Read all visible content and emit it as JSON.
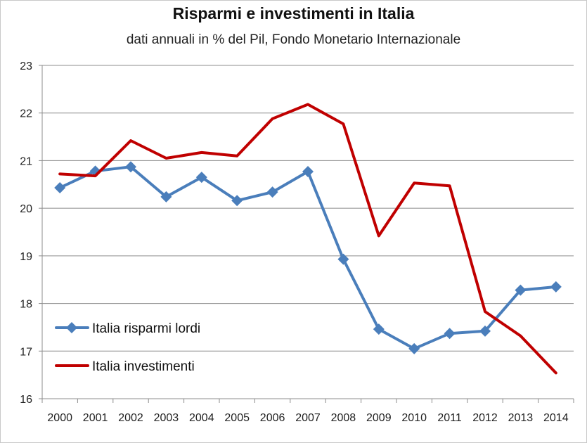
{
  "chart_data": {
    "type": "line",
    "title": "Risparmi e investimenti in Italia",
    "subtitle": "dati annuali in % del Pil, Fondo Monetario Internazionale",
    "x": [
      "2000",
      "2001",
      "2002",
      "2003",
      "2004",
      "2005",
      "2006",
      "2007",
      "2008",
      "2009",
      "2010",
      "2011",
      "2012",
      "2013",
      "2014"
    ],
    "ylim": [
      16,
      23
    ],
    "yticks": [
      "16",
      "17",
      "18",
      "19",
      "20",
      "21",
      "22",
      "23"
    ],
    "grid": true,
    "legend_position": "bottom-left",
    "series": [
      {
        "name": "Italia risparmi lordi",
        "color": "#4a7ebb",
        "marker": "diamond",
        "values": [
          20.43,
          20.78,
          20.87,
          20.24,
          20.65,
          20.16,
          20.34,
          20.77,
          18.93,
          17.46,
          17.05,
          17.37,
          17.42,
          18.28,
          18.35
        ]
      },
      {
        "name": "Italia investimenti",
        "color": "#c00000",
        "marker": "none",
        "values": [
          20.72,
          20.68,
          21.42,
          21.05,
          21.17,
          21.1,
          21.88,
          22.18,
          21.77,
          19.42,
          20.53,
          20.47,
          17.83,
          17.32,
          16.54
        ]
      }
    ]
  }
}
